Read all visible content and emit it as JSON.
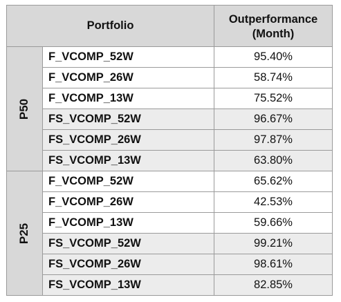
{
  "header": {
    "portfolio_label": "Portfolio",
    "metric_line1": "Outperformance",
    "metric_line2": "(Month)"
  },
  "groups": [
    {
      "label": "P50",
      "rows": [
        {
          "name": "F_VCOMP_52W",
          "value": "95.40%"
        },
        {
          "name": "F_VCOMP_26W",
          "value": "58.74%"
        },
        {
          "name": "F_VCOMP_13W",
          "value": "75.52%"
        },
        {
          "name": "FS_VCOMP_52W",
          "value": "96.67%"
        },
        {
          "name": "FS_VCOMP_26W",
          "value": "97.87%"
        },
        {
          "name": "FS_VCOMP_13W",
          "value": "63.80%"
        }
      ]
    },
    {
      "label": "P25",
      "rows": [
        {
          "name": "F_VCOMP_52W",
          "value": "65.62%"
        },
        {
          "name": "F_VCOMP_26W",
          "value": "42.53%"
        },
        {
          "name": "F_VCOMP_13W",
          "value": "59.66%"
        },
        {
          "name": "FS_VCOMP_52W",
          "value": "99.21%"
        },
        {
          "name": "FS_VCOMP_26W",
          "value": "98.61%"
        },
        {
          "name": "FS_VCOMP_13W",
          "value": "82.85%"
        }
      ]
    }
  ]
}
